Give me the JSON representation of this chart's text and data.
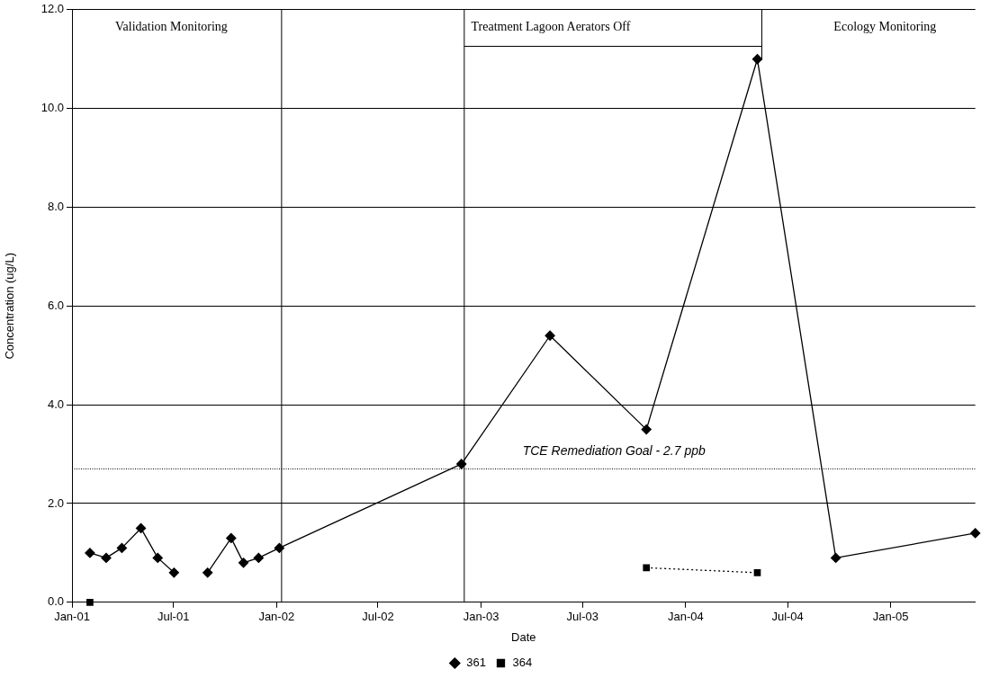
{
  "chart_data": {
    "type": "line",
    "xlabel": "Date",
    "ylabel": "Concentration (ug/L)",
    "xlim": [
      "2001-01-01",
      "2005-06-01"
    ],
    "xticks": [
      {
        "value": "2001-01-01",
        "label": "Jan-01"
      },
      {
        "value": "2001-07-01",
        "label": "Jul-01"
      },
      {
        "value": "2002-01-01",
        "label": "Jan-02"
      },
      {
        "value": "2002-07-01",
        "label": "Jul-02"
      },
      {
        "value": "2003-01-01",
        "label": "Jan-03"
      },
      {
        "value": "2003-07-01",
        "label": "Jul-03"
      },
      {
        "value": "2004-01-01",
        "label": "Jan-04"
      },
      {
        "value": "2004-07-01",
        "label": "Jul-04"
      },
      {
        "value": "2005-01-01",
        "label": "Jan-05"
      }
    ],
    "ylim": [
      0,
      12
    ],
    "yticks": [
      {
        "value": 0,
        "label": "0.0"
      },
      {
        "value": 2,
        "label": "2.0"
      },
      {
        "value": 4,
        "label": "4.0"
      },
      {
        "value": 6,
        "label": "6.0"
      },
      {
        "value": 8,
        "label": "8.0"
      },
      {
        "value": 10,
        "label": "10.0"
      },
      {
        "value": 12,
        "label": "12.0"
      }
    ],
    "grid": "y",
    "legend": "bottom",
    "series": [
      {
        "name": "361",
        "color": "#000000",
        "marker": "diamond",
        "line_style": "solid",
        "x": [
          "2001-02-02",
          "2001-03-03",
          "2001-03-31",
          "2001-05-04",
          "2001-06-03",
          "2001-07-02",
          "2001-08-01",
          "2001-08-31",
          "2001-10-12",
          "2001-11-03",
          "2001-11-30",
          "2002-01-06",
          "2002-11-27",
          "2003-05-04",
          "2003-10-23",
          "2004-05-08",
          "2004-09-25",
          "2005-06-01"
        ],
        "values": [
          1.0,
          0.9,
          1.1,
          1.5,
          0.9,
          0.6,
          null,
          0.6,
          1.3,
          0.8,
          0.9,
          1.1,
          2.8,
          5.4,
          3.5,
          11.0,
          0.9,
          1.4
        ]
      },
      {
        "name": "364",
        "color": "#000000",
        "marker": "square",
        "line_style": "dotted",
        "x": [
          "2001-02-02",
          "2002-06-01",
          "2003-10-23",
          "2004-05-08"
        ],
        "values": [
          0.0,
          null,
          0.7,
          0.6
        ]
      }
    ],
    "ref_lines": [
      {
        "axis": "x",
        "value": "2002-01-10",
        "color": "#000000",
        "line_style": "solid"
      },
      {
        "axis": "x",
        "value": "2002-12-02",
        "color": "#000000",
        "line_style": "solid"
      },
      {
        "axis": "y",
        "value": 2.7,
        "label": "TCE Remediation Goal - 2.7 ppb",
        "color": "#000000",
        "line_style": "dotted"
      }
    ],
    "annotations": [
      "Validation Monitoring",
      "Treatment Lagoon Aerators Off",
      "Ecology Monitoring"
    ]
  }
}
